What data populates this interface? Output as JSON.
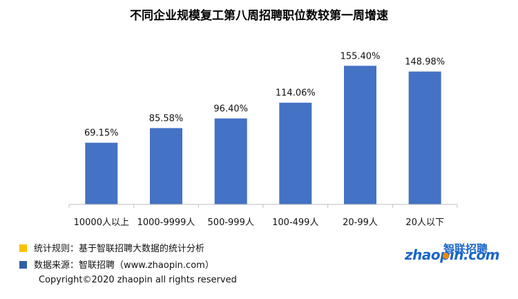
{
  "chart_data": {
    "type": "bar",
    "title": "不同企业规模复工第八周招聘职位数较第一周增速",
    "categories": [
      "10000人以上",
      "1000-9999人",
      "500-999人",
      "100-499人",
      "20-99人",
      "20人以下"
    ],
    "values": [
      69.15,
      85.58,
      96.4,
      114.06,
      155.4,
      148.98
    ],
    "data_labels": [
      "69.15%",
      "85.58%",
      "96.40%",
      "114.06%",
      "155.40%",
      "148.98%"
    ],
    "ylim": [
      0,
      175
    ],
    "grid": false,
    "bar_color": "#4472c4"
  },
  "notes": {
    "rule": "统计规则：基于智联招聘大数据的统计分析",
    "source": "数据来源：智联招聘（www.zhaopin.com）",
    "rule_color": "#ffc000",
    "source_color": "#2e5fa8"
  },
  "copyright": "Copyright©2020 zhaopin all rights reserved",
  "logo": {
    "cn": "智联招聘",
    "en": "zhaopin.com",
    "icon": "zhaopin-logo-icon"
  }
}
